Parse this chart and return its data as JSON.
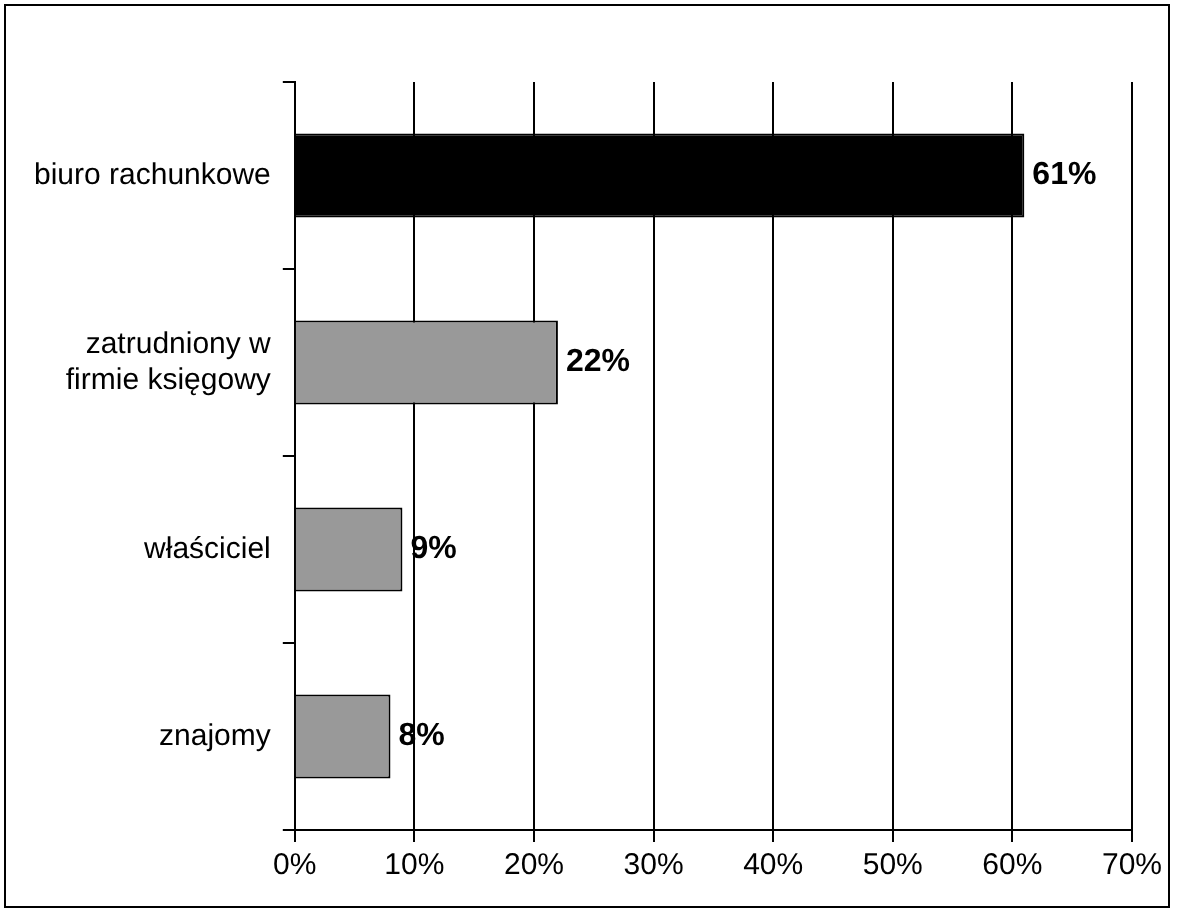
{
  "chart_data": {
    "type": "bar",
    "orientation": "horizontal",
    "categories": [
      "biuro rachunkowe",
      "zatrudniony w firmie księgowy",
      "właściciel",
      "znajomy"
    ],
    "values": [
      61,
      22,
      9,
      8
    ],
    "colors": [
      "#000000",
      "#999999",
      "#999999",
      "#999999"
    ],
    "value_labels": [
      "61%",
      "22%",
      "9%",
      "8%"
    ],
    "xlim": [
      0,
      70
    ],
    "xticks": [
      {
        "value": 0,
        "label": "0%"
      },
      {
        "value": 10,
        "label": "10%"
      },
      {
        "value": 20,
        "label": "20%"
      },
      {
        "value": 30,
        "label": "30%"
      },
      {
        "value": 40,
        "label": "40%"
      },
      {
        "value": 50,
        "label": "50%"
      },
      {
        "value": 60,
        "label": "60%"
      },
      {
        "value": 70,
        "label": "70%"
      }
    ],
    "grid": "x",
    "legend": false
  }
}
